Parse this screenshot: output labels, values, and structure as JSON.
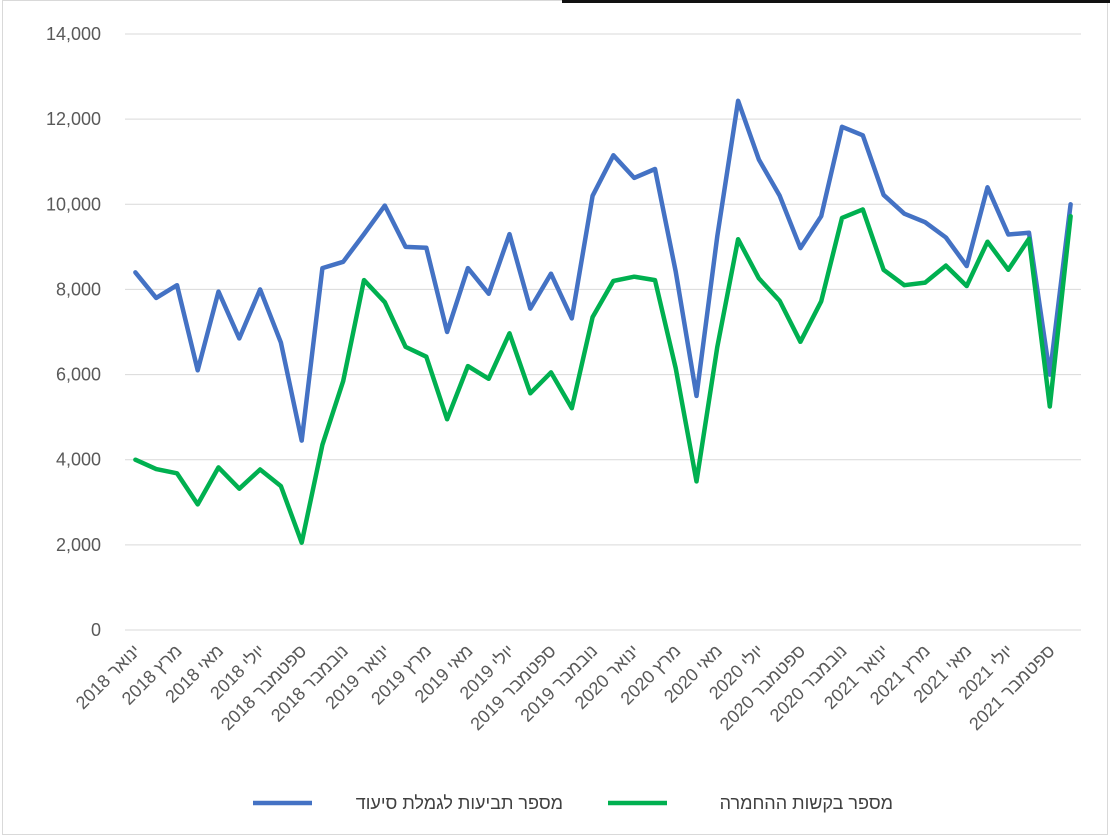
{
  "chart_data": {
    "type": "line",
    "title": "",
    "xlabel": "",
    "ylabel": "",
    "ylim": [
      0,
      14000
    ],
    "yticks": [
      0,
      2000,
      4000,
      6000,
      8000,
      10000,
      12000,
      14000
    ],
    "ytick_labels": [
      "0",
      "2,000",
      "4,000",
      "6,000",
      "8,000",
      "10,000",
      "12,000",
      "14,000"
    ],
    "grid": true,
    "legend_position": "bottom",
    "x": [
      "ינואר 2018",
      "פברואר 2018",
      "מרץ 2018",
      "אפריל 2018",
      "מאי 2018",
      "יוני 2018",
      "יולי 2018",
      "אוגוסט 2018",
      "ספטמבר 2018",
      "אוקטובר 2018",
      "נובמבר 2018",
      "דצמבר 2018",
      "ינואר 2019",
      "פברואר 2019",
      "מרץ 2019",
      "אפריל 2019",
      "מאי 2019",
      "יוני 2019",
      "יולי 2019",
      "אוגוסט 2019",
      "ספטמבר 2019",
      "אוקטובר 2019",
      "נובמבר 2019",
      "דצמבר 2019",
      "ינואר 2020",
      "פברואר 2020",
      "מרץ 2020",
      "אפריל 2020",
      "מאי 2020",
      "יוני 2020",
      "יולי 2020",
      "אוגוסט 2020",
      "ספטמבר 2020",
      "אוקטובר 2020",
      "נובמבר 2020",
      "דצמבר 2020",
      "ינואר 2021",
      "פברואר 2021",
      "מרץ 2021",
      "אפריל 2021",
      "מאי 2021",
      "יוני 2021",
      "יולי 2021",
      "אוגוסט 2021",
      "ספטמבר 2021",
      "אוקטובר 2021"
    ],
    "tick_labels": [
      "ינואר 2018",
      "מרץ 2018",
      "מאי 2018",
      "יולי 2018",
      "ספטמבר 2018",
      "נובמבר 2018",
      "ינואר 2019",
      "מרץ 2019",
      "מאי 2019",
      "יולי 2019",
      "ספטמבר 2019",
      "נובמבר 2019",
      "ינואר 2020",
      "מרץ 2020",
      "מאי 2020",
      "יולי 2020",
      "ספטמבר 2020",
      "נובמבר 2020",
      "ינואר 2021",
      "מרץ 2021",
      "מאי 2021",
      "יולי 2021",
      "ספטמבר 2021"
    ],
    "series": [
      {
        "name": "מספר תביעות לגמלת סיעוד",
        "color": "#4472C4",
        "values": [
          8400,
          7800,
          8100,
          6100,
          7950,
          6850,
          8000,
          6750,
          4450,
          8500,
          8650,
          9300,
          9970,
          9000,
          8980,
          7000,
          8500,
          7900,
          9300,
          7550,
          8370,
          7320,
          10200,
          11150,
          10620,
          10830,
          8420,
          5500,
          9250,
          12430,
          11050,
          10200,
          8970,
          9720,
          11820,
          11620,
          10220,
          9780,
          9580,
          9220,
          8550,
          10400,
          9290,
          9330,
          6000,
          10000
        ]
      },
      {
        "name": "מספר בקשות ההחמרה",
        "color": "#00B050",
        "values": [
          4000,
          3780,
          3680,
          2950,
          3820,
          3320,
          3770,
          3380,
          2050,
          4350,
          5850,
          8220,
          7700,
          6650,
          6420,
          4950,
          6200,
          5900,
          6970,
          5560,
          6050,
          5210,
          7350,
          8200,
          8300,
          8220,
          6150,
          3490,
          6650,
          9180,
          8260,
          7730,
          6770,
          7720,
          9680,
          9880,
          8460,
          8100,
          8160,
          8560,
          8080,
          9120,
          8460,
          9190,
          5250,
          9720
        ]
      }
    ]
  }
}
